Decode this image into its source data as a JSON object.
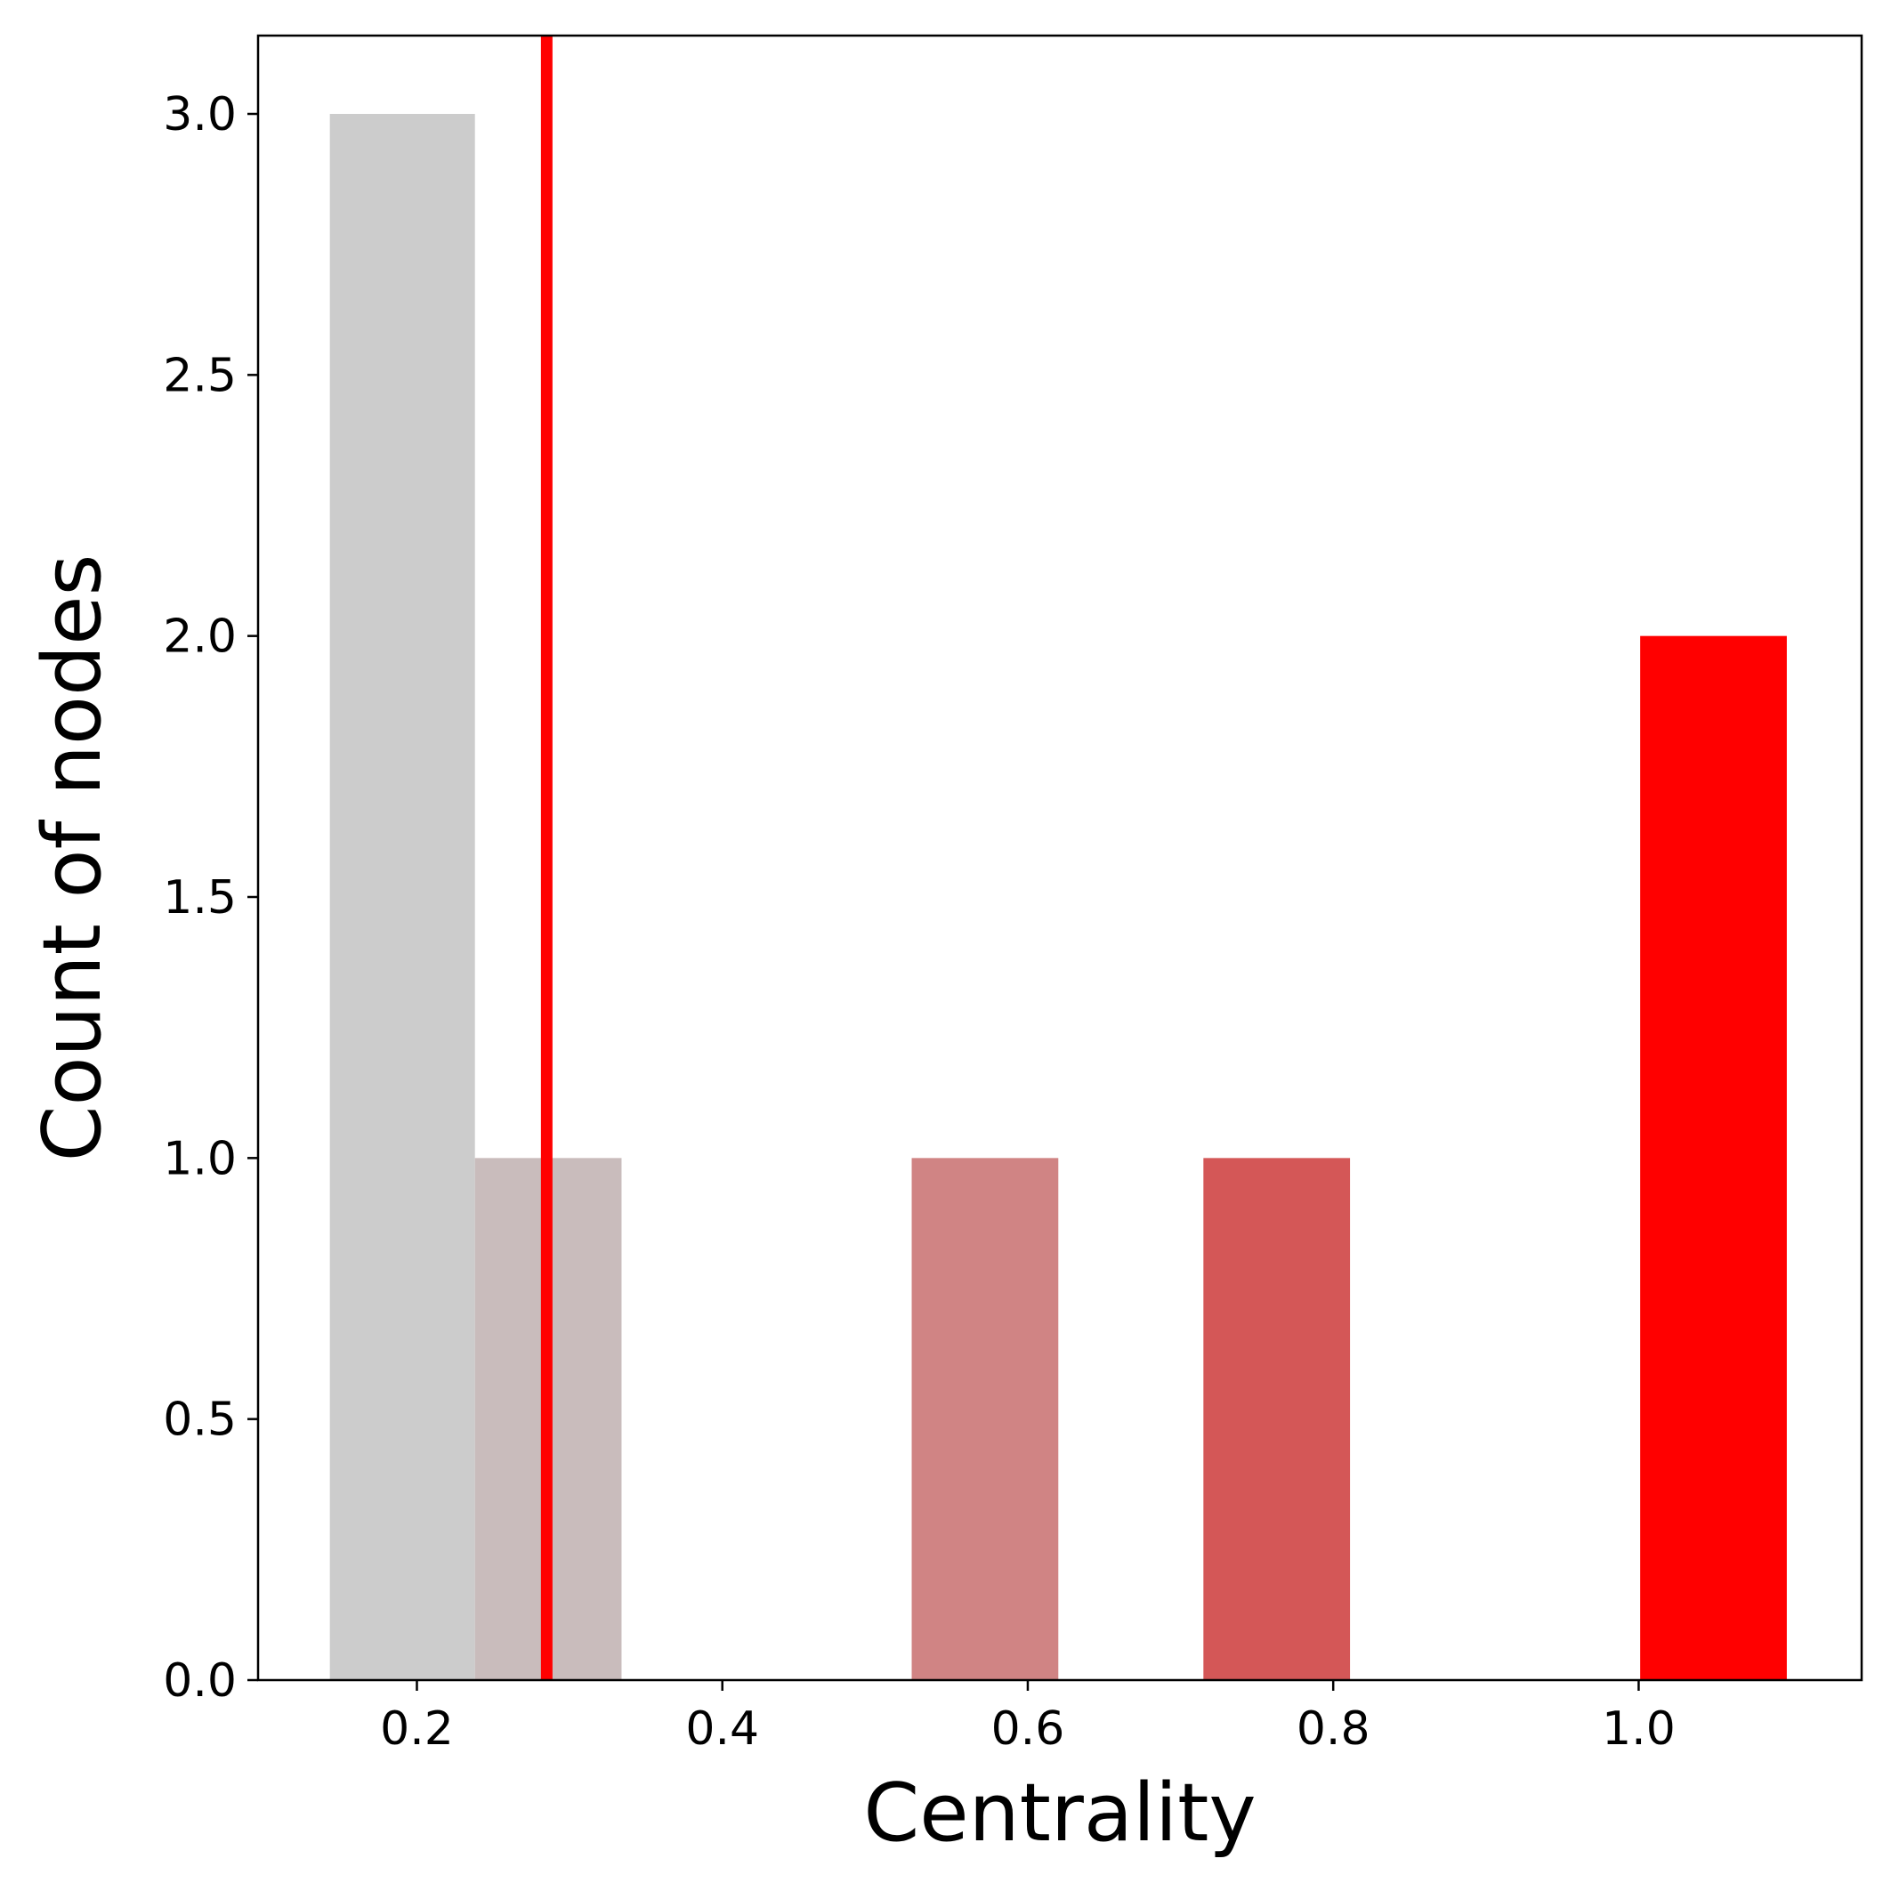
{
  "chart_data": {
    "type": "bar",
    "title": "",
    "xlabel": "Centrality",
    "ylabel": "Count of nodes",
    "xlim": [
      0.096,
      1.146
    ],
    "ylim": [
      0,
      3.15
    ],
    "xticks": [
      {
        "value": 0.2,
        "label": "0.2"
      },
      {
        "value": 0.4,
        "label": "0.4"
      },
      {
        "value": 0.6,
        "label": "0.6"
      },
      {
        "value": 0.8,
        "label": "0.8"
      },
      {
        "value": 1.0,
        "label": "1.0"
      }
    ],
    "yticks": [
      {
        "value": 0.0,
        "label": "0.0"
      },
      {
        "value": 0.5,
        "label": "0.5"
      },
      {
        "value": 1.0,
        "label": "1.0"
      },
      {
        "value": 1.5,
        "label": "1.5"
      },
      {
        "value": 2.0,
        "label": "2.0"
      },
      {
        "value": 2.5,
        "label": "2.5"
      },
      {
        "value": 3.0,
        "label": "3.0"
      }
    ],
    "bars": [
      {
        "x0": 0.143,
        "x1": 0.238,
        "value": 3,
        "color": "#cccccc"
      },
      {
        "x0": 0.238,
        "x1": 0.334,
        "value": 1,
        "color": "#c9bcbc"
      },
      {
        "x0": 0.524,
        "x1": 0.62,
        "value": 1,
        "color": "#d08484"
      },
      {
        "x0": 0.715,
        "x1": 0.811,
        "value": 1,
        "color": "#d45757"
      },
      {
        "x0": 1.001,
        "x1": 1.097,
        "value": 2,
        "color": "#ff0000"
      }
    ],
    "vline": {
      "x": 0.285,
      "color": "#ff0000"
    },
    "grid": false,
    "legend": "none"
  }
}
